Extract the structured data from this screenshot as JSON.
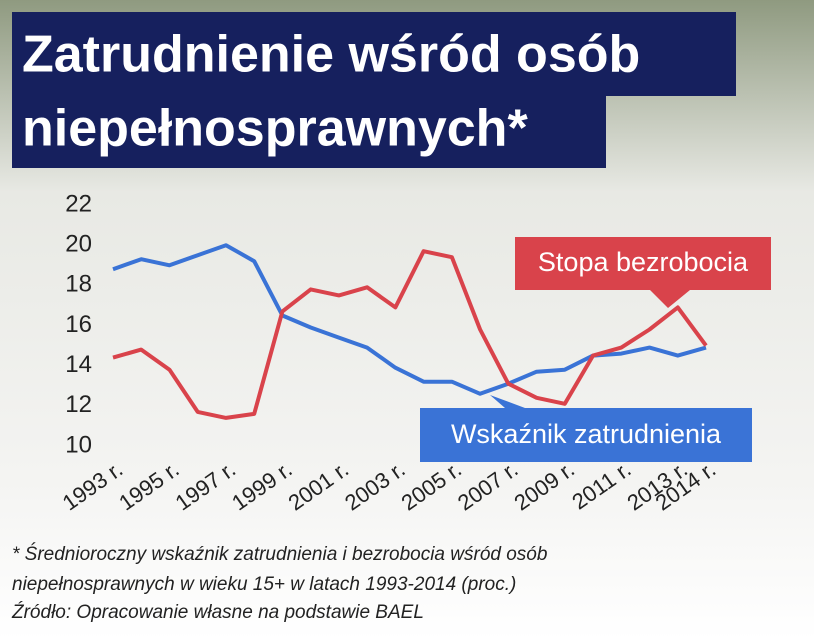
{
  "chart_data": {
    "type": "line",
    "title": [
      "Zatrudnienie wśród osób",
      "niepełnosprawnych*"
    ],
    "categories": [
      "1993 r.",
      null,
      "1995 r.",
      null,
      "1997 r.",
      null,
      "1999 r.",
      null,
      "2001 r.",
      null,
      "2003 r.",
      null,
      "2005 r.",
      null,
      "2007 r.",
      null,
      "2009 r.",
      null,
      "2011 r.",
      null,
      "2013 r.",
      "2014 r."
    ],
    "series": [
      {
        "name": "Wskaźnik zatrudnienia",
        "color": "#3a73d6",
        "values": [
          18.8,
          19.3,
          19.0,
          19.5,
          20.0,
          19.2,
          16.5,
          15.9,
          15.4,
          14.9,
          13.9,
          13.2,
          13.2,
          12.6,
          13.1,
          13.7,
          13.8,
          14.5,
          14.6,
          14.9,
          14.5,
          14.9
        ]
      },
      {
        "name": "Stopa bezrobocia",
        "color": "#d9434b",
        "values": [
          14.4,
          14.8,
          13.8,
          11.7,
          11.4,
          11.6,
          16.7,
          17.8,
          17.5,
          17.9,
          16.9,
          19.7,
          19.4,
          15.8,
          13.1,
          12.4,
          12.1,
          14.5,
          14.9,
          15.8,
          16.9,
          15.0
        ]
      }
    ],
    "ylim": [
      10,
      22
    ],
    "yticks": [
      10,
      12,
      14,
      16,
      18,
      20,
      22
    ],
    "notes": [
      "* Średnioroczny wskaźnik zatrudnienia i bezrobocia wśród osób",
      "niepełnosprawnych w wieku 15+ w latach 1993-2014 (proc.)",
      "Źródło: Opracowanie własne na podstawie BAEL"
    ]
  }
}
